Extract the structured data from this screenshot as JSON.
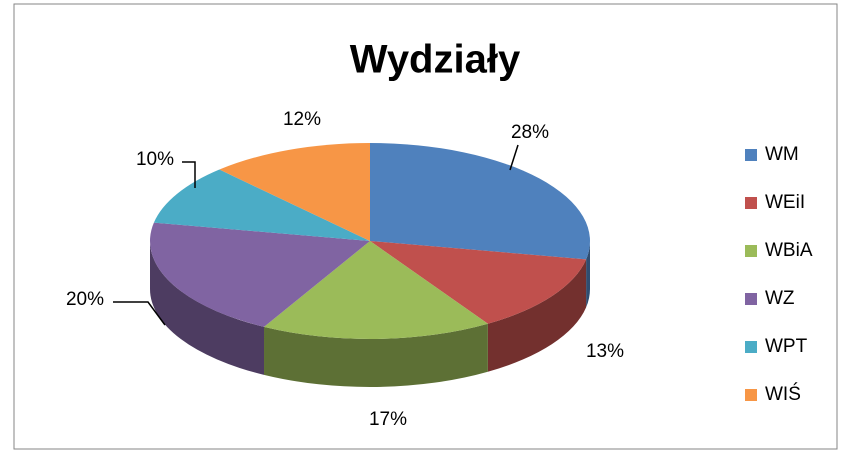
{
  "chart_data": {
    "type": "pie3d",
    "title": "Wydziały",
    "categories": [
      "WM",
      "WEiI",
      "WBiA",
      "WZ",
      "WPT",
      "WIŚ"
    ],
    "values": [
      28,
      13,
      17,
      20,
      10,
      12
    ],
    "value_labels": [
      "28%",
      "13%",
      "17%",
      "20%",
      "10%",
      "12%"
    ],
    "colors": [
      "#4f81bd",
      "#c0504d",
      "#9bbb59",
      "#8064a2",
      "#4bacc6",
      "#f79646"
    ],
    "legend": "right"
  }
}
